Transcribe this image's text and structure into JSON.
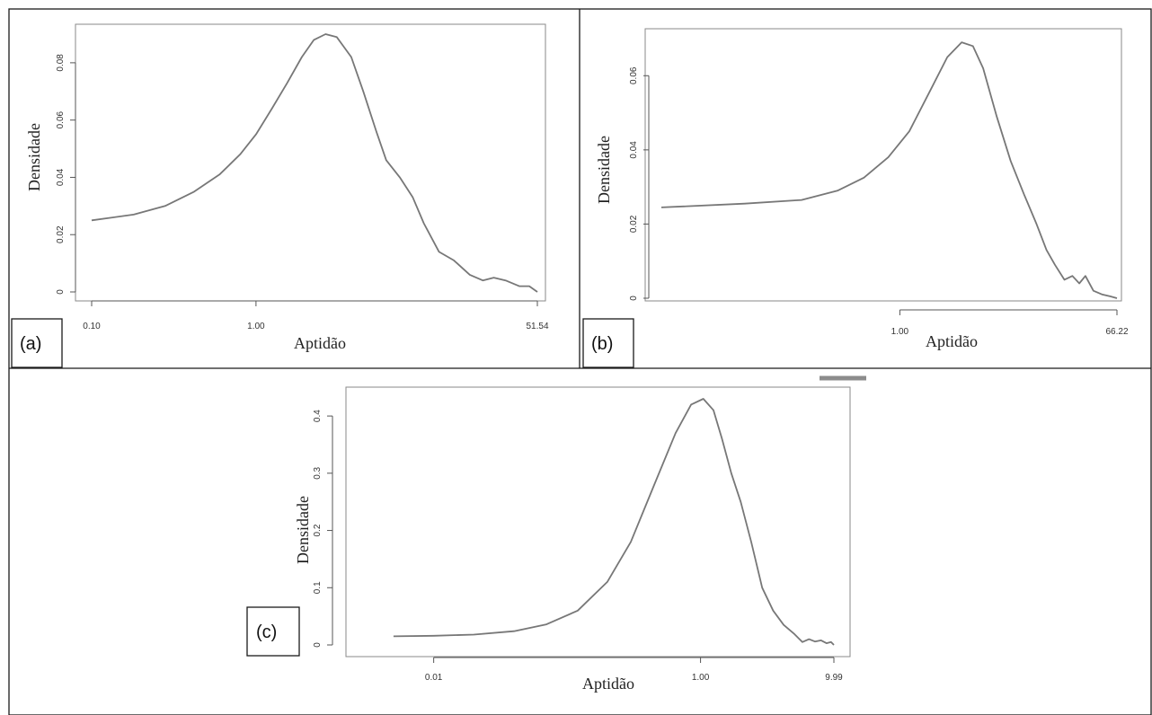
{
  "chart_data": [
    {
      "type": "line",
      "panel": "(a)",
      "xlabel": "Aptidão",
      "ylabel": "Densidade",
      "x_scale": "log",
      "xlim": [
        0.1,
        51.54
      ],
      "ylim": [
        0,
        0.09
      ],
      "x_ticks": [
        0.1,
        1.0,
        51.54
      ],
      "x_tick_labels": [
        "0.10",
        "1.00",
        "51.54"
      ],
      "y_ticks": [
        0,
        0.02,
        0.04,
        0.06,
        0.08
      ],
      "y_tick_labels": [
        "0",
        "0.02",
        "0.04",
        "0.06",
        "0.08"
      ],
      "x": [
        0.1,
        0.18,
        0.28,
        0.42,
        0.6,
        0.8,
        1.0,
        1.25,
        1.55,
        1.9,
        2.25,
        2.65,
        3.1,
        3.8,
        4.5,
        5.4,
        6.2,
        7.5,
        9.0,
        10.5,
        13.0,
        16.0,
        20.0,
        24.0,
        28.0,
        33.0,
        40.0,
        46.0,
        51.54
      ],
      "y": [
        0.025,
        0.027,
        0.03,
        0.035,
        0.041,
        0.048,
        0.055,
        0.064,
        0.073,
        0.082,
        0.088,
        0.09,
        0.089,
        0.082,
        0.07,
        0.056,
        0.046,
        0.04,
        0.033,
        0.024,
        0.014,
        0.011,
        0.006,
        0.004,
        0.005,
        0.004,
        0.002,
        0.002,
        0.0
      ]
    },
    {
      "type": "line",
      "panel": "(b)",
      "xlabel": "Aptidão",
      "ylabel": "Densidade",
      "x_scale": "log",
      "xlim": [
        0.01,
        66.22
      ],
      "ylim": [
        0,
        0.07
      ],
      "x_ticks": [
        1.0,
        66.22
      ],
      "x_tick_labels": [
        "1.00",
        "66.22"
      ],
      "y_ticks": [
        0,
        0.02,
        0.04,
        0.06
      ],
      "y_tick_labels": [
        "0",
        "0.02",
        "0.04",
        "0.06"
      ],
      "x": [
        0.01,
        0.05,
        0.15,
        0.3,
        0.5,
        0.8,
        1.2,
        1.8,
        2.5,
        3.3,
        4.1,
        5.0,
        6.5,
        8.5,
        11.0,
        14.0,
        17.0,
        20.0,
        24.0,
        28.0,
        32.0,
        36.0,
        42.0,
        50.0,
        58.0,
        66.22
      ],
      "y": [
        0.0245,
        0.0255,
        0.0265,
        0.029,
        0.0325,
        0.038,
        0.045,
        0.056,
        0.065,
        0.069,
        0.068,
        0.062,
        0.049,
        0.037,
        0.028,
        0.02,
        0.013,
        0.009,
        0.005,
        0.006,
        0.004,
        0.006,
        0.002,
        0.001,
        0.0005,
        0.0
      ]
    },
    {
      "type": "line",
      "panel": "(c)",
      "xlabel": "Aptidão",
      "ylabel": "Densidade",
      "x_scale": "log",
      "xlim": [
        0.003,
        9.99
      ],
      "ylim": [
        0,
        0.43
      ],
      "x_ticks": [
        0.01,
        1.0,
        9.99
      ],
      "x_tick_labels": [
        "0.01",
        "1.00",
        "9.99"
      ],
      "y_ticks": [
        0,
        0.1,
        0.2,
        0.3,
        0.4
      ],
      "y_tick_labels": [
        "0",
        "0.1",
        "0.2",
        "0.3",
        "0.4"
      ],
      "x": [
        0.005,
        0.01,
        0.02,
        0.04,
        0.07,
        0.12,
        0.2,
        0.3,
        0.45,
        0.65,
        0.85,
        1.05,
        1.25,
        1.45,
        1.7,
        2.0,
        2.4,
        2.9,
        3.5,
        4.2,
        5.0,
        5.8,
        6.5,
        7.2,
        8.0,
        8.8,
        9.5,
        9.99
      ],
      "y": [
        0.015,
        0.016,
        0.018,
        0.024,
        0.036,
        0.06,
        0.11,
        0.18,
        0.28,
        0.37,
        0.42,
        0.43,
        0.41,
        0.36,
        0.3,
        0.25,
        0.18,
        0.1,
        0.06,
        0.035,
        0.02,
        0.005,
        0.01,
        0.006,
        0.008,
        0.003,
        0.005,
        0.0
      ]
    }
  ]
}
